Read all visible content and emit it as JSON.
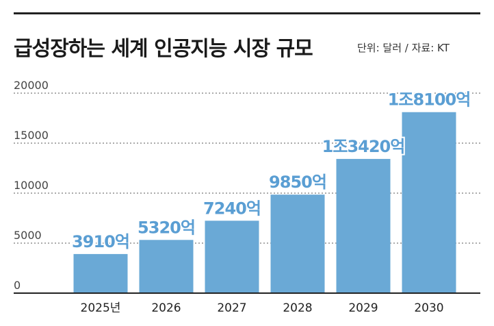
{
  "title": "급성장하는 세계 인공지능 시장 규모",
  "subtitle": "단위: 달러 / 자료: KT",
  "colors": {
    "bar": "#6aa9d6",
    "label": "#5a9ed3",
    "grid": "#555555",
    "rule": "#222222"
  },
  "chart_data": {
    "type": "bar",
    "title": "급성장하는 세계 인공지능 시장 규모",
    "ylim": [
      0,
      20000
    ],
    "yticks": [
      "0",
      "5000",
      "10000",
      "15000",
      "20000"
    ],
    "categories": [
      "2025년",
      "2026",
      "2027",
      "2028",
      "2029",
      "2030"
    ],
    "values": [
      3910,
      5320,
      7240,
      9850,
      13420,
      18100
    ],
    "data_labels": [
      "3910억",
      "5320억",
      "7240억",
      "9850억",
      "1조3420억",
      "1조8100억"
    ],
    "grid": true,
    "legend": "none"
  }
}
